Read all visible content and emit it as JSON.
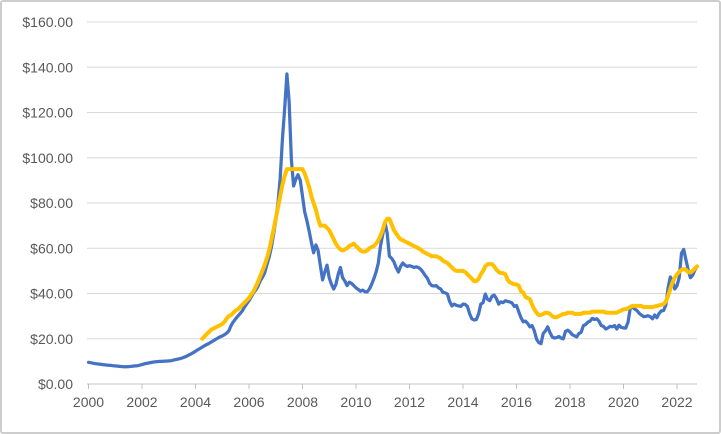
{
  "chart_data": {
    "type": "line",
    "title": "",
    "grid": true,
    "legend": "none",
    "colors": {
      "gridline": "#d9d9d9",
      "axis_line": "#c6c6c6",
      "tick_mark": "#bfbfbf",
      "label_text": "#595959",
      "background": "#ffffff",
      "frame_border": "#cdcdcd"
    },
    "y_axis": {
      "min": 0,
      "max": 160,
      "step": 20,
      "tick_labels": [
        "$0.00",
        "$20.00",
        "$40.00",
        "$60.00",
        "$80.00",
        "$100.00",
        "$120.00",
        "$140.00",
        "$160.00"
      ]
    },
    "x_axis": {
      "start_year": 2000,
      "end_year": 2022,
      "tick_labels": [
        "2000",
        "2002",
        "2004",
        "2006",
        "2008",
        "2010",
        "2012",
        "2014",
        "2016",
        "2018",
        "2020",
        "2022"
      ]
    },
    "series": [
      {
        "name": "blue-line",
        "color": "#4472c4",
        "stroke_width": 3.25,
        "start_year": 2000.0,
        "interval_years": 0.0833333,
        "values": [
          9.6,
          9.4,
          9.2,
          9.0,
          8.9,
          8.8,
          8.6,
          8.5,
          8.4,
          8.3,
          8.2,
          8.1,
          8.0,
          7.9,
          7.8,
          7.7,
          7.6,
          7.6,
          7.7,
          7.8,
          7.9,
          8.0,
          8.1,
          8.3,
          8.6,
          8.9,
          9.1,
          9.3,
          9.5,
          9.7,
          9.8,
          9.9,
          10.0,
          10.0,
          10.1,
          10.1,
          10.2,
          10.3,
          10.5,
          10.8,
          11.0,
          11.2,
          11.5,
          11.9,
          12.3,
          12.8,
          13.3,
          13.9,
          14.5,
          15.1,
          15.7,
          16.3,
          16.9,
          17.4,
          17.9,
          18.5,
          19.1,
          19.7,
          20.3,
          20.8,
          21.2,
          21.8,
          22.5,
          23.5,
          26.0,
          27.5,
          28.8,
          30.0,
          31.1,
          32.3,
          34.0,
          35.5,
          36.8,
          38.5,
          40.3,
          41.5,
          43.1,
          45.5,
          47.1,
          49.0,
          52.5,
          56.0,
          60.3,
          66.0,
          72.0,
          80.0,
          91.0,
          108.0,
          122.0,
          137.0,
          125.0,
          99.0,
          87.5,
          90.5,
          92.5,
          90.0,
          83.0,
          76.0,
          72.0,
          67.5,
          62.5,
          58.0,
          61.5,
          59.0,
          52.5,
          46.0,
          49.5,
          52.5,
          47.0,
          44.0,
          42.0,
          44.0,
          48.5,
          51.5,
          47.0,
          45.5,
          43.5,
          45.0,
          44.5,
          43.5,
          42.5,
          41.8,
          41.0,
          41.5,
          40.8,
          40.7,
          42.0,
          44.0,
          46.5,
          49.5,
          53.5,
          61.0,
          66.0,
          71.5,
          66.5,
          56.5,
          55.5,
          54.0,
          51.5,
          49.5,
          52.0,
          53.5,
          52.5,
          52.0,
          52.3,
          52.0,
          51.5,
          51.8,
          51.5,
          50.8,
          49.5,
          48.0,
          46.8,
          44.5,
          43.5,
          43.3,
          43.5,
          42.5,
          42.0,
          40.5,
          40.3,
          39.8,
          36.5,
          34.5,
          35.3,
          34.8,
          34.5,
          34.3,
          35.3,
          35.2,
          34.2,
          31.0,
          28.8,
          28.3,
          28.5,
          31.0,
          35.3,
          36.0,
          39.8,
          37.5,
          36.8,
          38.8,
          39.3,
          37.8,
          35.3,
          36.3,
          36.0,
          36.8,
          36.5,
          36.3,
          35.8,
          34.3,
          34.7,
          32.0,
          29.3,
          27.5,
          27.8,
          26.8,
          25.3,
          25.8,
          23.5,
          19.8,
          18.3,
          17.8,
          22.3,
          23.5,
          25.3,
          22.8,
          20.8,
          20.3,
          20.5,
          21.0,
          20.3,
          20.0,
          23.3,
          23.8,
          23.0,
          21.8,
          21.3,
          20.8,
          22.3,
          22.8,
          25.8,
          26.3,
          27.3,
          27.8,
          29.0,
          28.5,
          28.8,
          27.8,
          25.8,
          25.5,
          24.3,
          24.8,
          25.5,
          25.3,
          25.8,
          24.3,
          26.0,
          25.0,
          24.8,
          24.7,
          27.3,
          33.3,
          34.0,
          33.2,
          32.5,
          31.3,
          30.5,
          29.8,
          29.9,
          30.2,
          29.8,
          28.8,
          30.5,
          29.3,
          31.3,
          32.3,
          32.5,
          35.0,
          42.5,
          47.3,
          45.5,
          42.0,
          43.5,
          47.0,
          57.8,
          59.5,
          55.0,
          50.5,
          47.0,
          48.0,
          50.3,
          52.0
        ]
      },
      {
        "name": "yellow-line",
        "color": "#ffc000",
        "stroke_width": 4,
        "start_year": 2004.25,
        "interval_years": 0.0833333,
        "values": [
          20.0,
          21.0,
          22.0,
          23.0,
          24.0,
          24.5,
          25.0,
          25.5,
          26.0,
          26.5,
          27.5,
          29.0,
          30.0,
          30.5,
          31.5,
          32.5,
          33.0,
          34.0,
          35.0,
          36.0,
          37.0,
          38.0,
          39.5,
          41.0,
          43.0,
          45.0,
          47.5,
          50.0,
          52.5,
          55.5,
          59.0,
          63.5,
          68.0,
          73.0,
          78.0,
          83.0,
          88.0,
          92.0,
          95.0,
          95.0,
          95.0,
          95.0,
          95.0,
          95.0,
          95.0,
          95.0,
          93.0,
          90.0,
          87.0,
          83.0,
          80.0,
          77.0,
          73.0,
          70.0,
          70.0,
          70.0,
          69.0,
          68.0,
          66.0,
          64.0,
          62.0,
          60.5,
          59.5,
          59.0,
          59.5,
          60.0,
          61.0,
          61.5,
          62.0,
          61.0,
          60.0,
          59.0,
          58.5,
          58.5,
          59.0,
          60.0,
          60.5,
          61.0,
          62.0,
          63.5,
          65.5,
          68.0,
          71.5,
          73.0,
          73.0,
          70.5,
          68.0,
          66.5,
          65.0,
          64.0,
          63.5,
          63.0,
          62.5,
          62.0,
          61.5,
          61.0,
          60.5,
          60.0,
          59.5,
          58.5,
          58.0,
          57.5,
          57.0,
          56.5,
          56.5,
          56.5,
          56.0,
          55.5,
          54.5,
          54.0,
          53.5,
          52.5,
          51.5,
          50.5,
          50.0,
          50.0,
          50.0,
          50.0,
          49.5,
          48.5,
          47.5,
          46.5,
          45.5,
          45.5,
          46.5,
          48.5,
          50.0,
          52.0,
          53.0,
          53.0,
          53.0,
          52.0,
          50.5,
          49.5,
          49.0,
          49.0,
          48.5,
          46.0,
          45.0,
          44.5,
          44.0,
          44.0,
          43.5,
          41.0,
          40.5,
          38.5,
          38.0,
          37.5,
          35.0,
          33.0,
          31.5,
          30.5,
          30.5,
          31.0,
          31.5,
          31.5,
          31.0,
          30.0,
          29.5,
          29.5,
          30.0,
          30.5,
          31.0,
          31.0,
          31.5,
          31.5,
          31.5,
          31.0,
          31.0,
          31.0,
          31.0,
          31.5,
          31.5,
          31.5,
          31.5,
          32.0,
          32.0,
          32.0,
          32.0,
          32.0,
          32.0,
          31.5,
          31.5,
          31.5,
          31.5,
          31.5,
          31.5,
          32.0,
          32.5,
          33.0,
          33.0,
          33.5,
          34.0,
          34.5,
          34.5,
          34.5,
          34.5,
          34.5,
          34.0,
          34.0,
          34.0,
          34.0,
          34.0,
          34.3,
          34.5,
          34.8,
          35.0,
          35.3,
          36.5,
          39.0,
          42.0,
          45.0,
          47.0,
          48.5,
          49.5,
          50.5,
          50.8,
          50.5,
          49.5,
          49.3,
          50.0,
          51.0,
          52.0
        ]
      }
    ]
  }
}
